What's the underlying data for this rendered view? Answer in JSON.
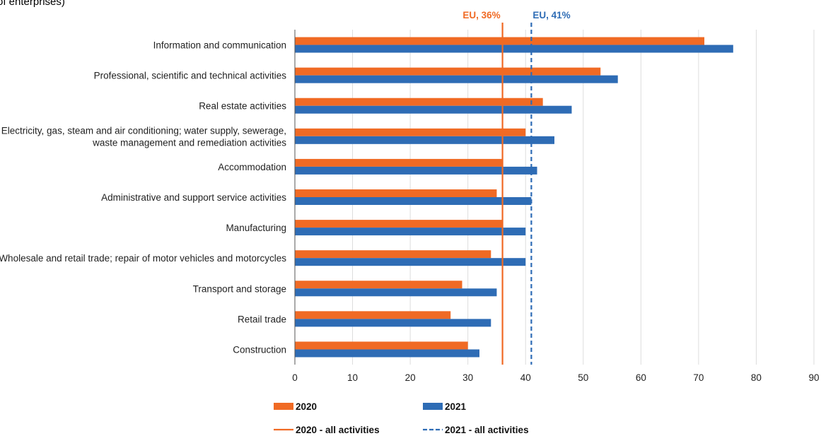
{
  "header": {
    "subtitle": "of enterprises)"
  },
  "chart_data": {
    "type": "bar",
    "orientation": "horizontal",
    "categories": [
      "Information and communication",
      "Professional, scientific and technical activities",
      "Real estate activities",
      "Electricity, gas, steam and air conditioning; water supply, sewerage,\nwaste management and remediation activities",
      "Accommodation",
      "Administrative and support service activities",
      "Manufacturing",
      "Wholesale and retail trade; repair of motor vehicles and motorcycles",
      "Transport and storage",
      "Retail trade",
      "Construction"
    ],
    "series": [
      {
        "name": "2020",
        "color": "#f06a24",
        "values": [
          71,
          53,
          43,
          40,
          36,
          35,
          36,
          34,
          29,
          27,
          30
        ]
      },
      {
        "name": "2021",
        "color": "#2e6cb5",
        "values": [
          76,
          56,
          48,
          45,
          42,
          41,
          40,
          40,
          35,
          34,
          32
        ]
      }
    ],
    "reference_lines": [
      {
        "name": "2020 - all activities",
        "value": 36,
        "label": "EU, 36%",
        "color": "#f06a24",
        "style": "solid"
      },
      {
        "name": "2021 - all activities",
        "value": 41,
        "label": "EU, 41%",
        "color": "#2e6cb5",
        "style": "dashed"
      }
    ],
    "xlim": [
      0,
      90
    ],
    "xticks": [
      0,
      10,
      20,
      30,
      40,
      50,
      60,
      70,
      80,
      90
    ],
    "grid": true,
    "legend_position": "bottom"
  }
}
